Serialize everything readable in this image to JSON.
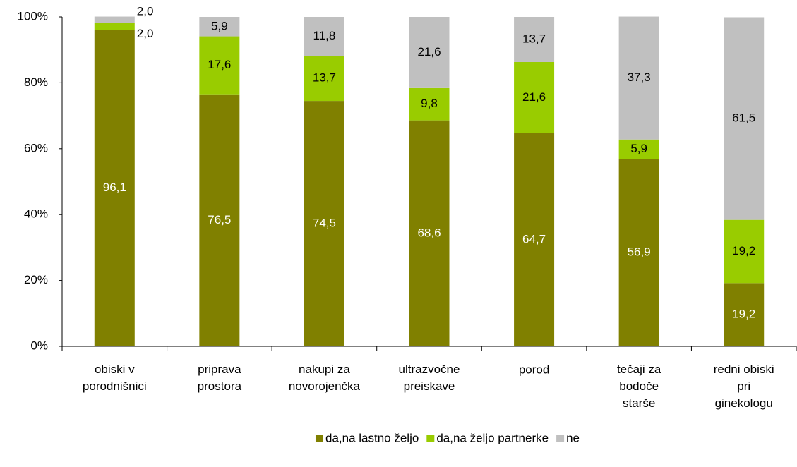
{
  "chart_data": {
    "type": "stacked_bar",
    "categories": [
      "obiski v\nporodnišnici",
      "priprava\nprostora",
      "nakupi za\nnovorojenčka",
      "ultrazvočne\npreiskave",
      "porod",
      "tečaji za\nbodoče\nstarše",
      "redni obiski\npri\nginekologu"
    ],
    "series": [
      {
        "name": "da,na lastno željo",
        "color": "#808000",
        "label_color": "#ffffff",
        "values": [
          96.1,
          76.5,
          74.5,
          68.6,
          64.7,
          56.9,
          19.2
        ],
        "value_labels": [
          "96,1",
          "76,5",
          "74,5",
          "68,6",
          "64,7",
          "56,9",
          "19,2"
        ]
      },
      {
        "name": "da,na željo partnerke",
        "color": "#99cc00",
        "label_color": "#000000",
        "values": [
          2.0,
          17.6,
          13.7,
          9.8,
          21.6,
          5.9,
          19.2
        ],
        "value_labels": [
          "2,0",
          "17,6",
          "13,7",
          "9,8",
          "21,6",
          "5,9",
          "19,2"
        ]
      },
      {
        "name": "ne",
        "color": "#c0c0c0",
        "label_color": "#000000",
        "values": [
          2.0,
          5.9,
          11.8,
          21.6,
          13.7,
          37.3,
          61.5
        ],
        "value_labels": [
          "2,0",
          "5,9",
          "11,8",
          "21,6",
          "13,7",
          "37,3",
          "61,5"
        ]
      }
    ],
    "ylim": [
      0,
      100
    ],
    "yticks": [
      {
        "value": 0,
        "label": "0%"
      },
      {
        "value": 20,
        "label": "20%"
      },
      {
        "value": 40,
        "label": "40%"
      },
      {
        "value": 60,
        "label": "60%"
      },
      {
        "value": 80,
        "label": "80%"
      },
      {
        "value": 100,
        "label": "100%"
      }
    ],
    "legend": "bottom"
  }
}
